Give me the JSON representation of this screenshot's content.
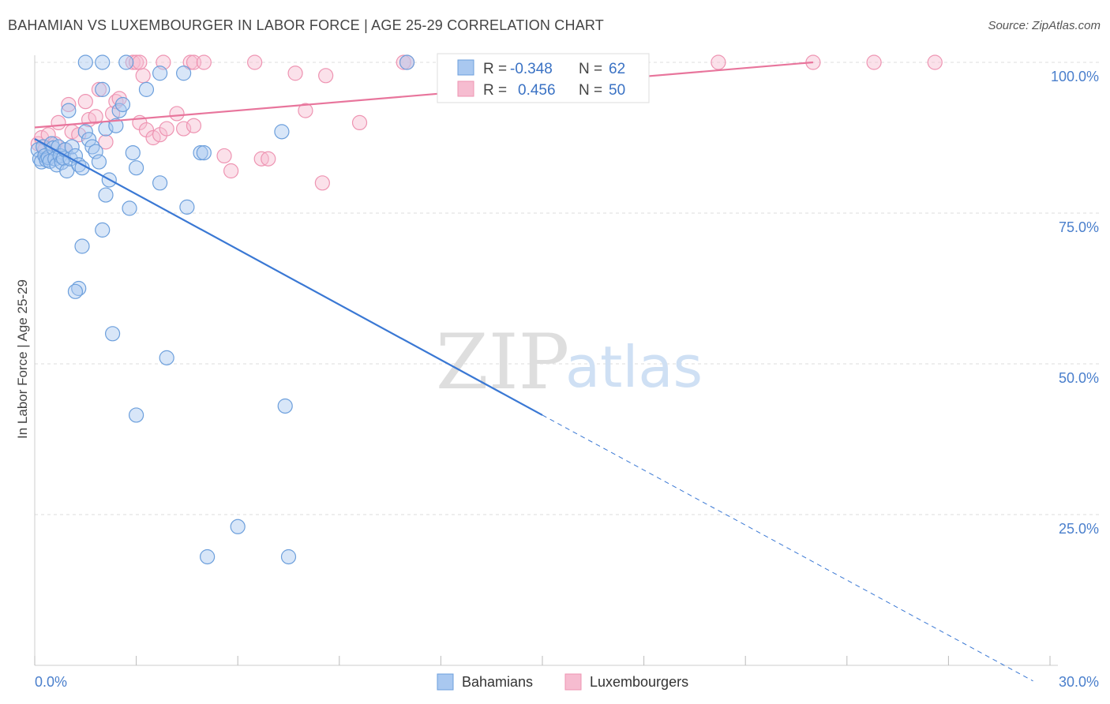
{
  "title": "BAHAMIAN VS LUXEMBOURGER IN LABOR FORCE | AGE 25-29 CORRELATION CHART",
  "source": "Source: ZipAtlas.com",
  "watermark": {
    "zip": "ZIP",
    "atlas": "atlas"
  },
  "colors": {
    "blue_fill": "#a9c8f0",
    "blue_stroke": "#6c9fdc",
    "blue_line": "#3a78d4",
    "pink_fill": "#f6bcd0",
    "pink_stroke": "#ee94b2",
    "pink_line": "#e8759c",
    "grid": "#dddddd",
    "tick_text": "#4a7fcc"
  },
  "legend": {
    "rows": [
      {
        "r_label": "R =",
        "r_value": "-0.348",
        "n_label": "N =",
        "n_value": "62"
      },
      {
        "r_label": "R =",
        "r_value": "0.456",
        "n_label": "N =",
        "n_value": "50"
      }
    ]
  },
  "bottom_legend": [
    "Bahamians",
    "Luxembourgers"
  ],
  "chart_data": {
    "type": "scatter",
    "title": "BAHAMIAN VS LUXEMBOURGER IN LABOR FORCE | AGE 25-29 CORRELATION CHART",
    "xlabel": "",
    "ylabel": "In Labor Force | Age 25-29",
    "xlim": [
      0,
      30
    ],
    "ylim": [
      0,
      100
    ],
    "x_tick_labels": [
      "0.0%",
      "30.0%"
    ],
    "y_ticks": [
      25,
      50,
      75,
      100
    ],
    "y_tick_labels": [
      "25.0%",
      "50.0%",
      "75.0%",
      "100.0%"
    ],
    "grid": true,
    "series": [
      {
        "name": "Bahamians",
        "r": -0.348,
        "n": 62,
        "trend": {
          "x0": 0,
          "y0": 87.3,
          "x1": 15.0,
          "y1": 41.5,
          "dash_x1": 29.5,
          "dash_y1": -2.6
        },
        "points": [
          [
            0.1,
            85.5
          ],
          [
            0.15,
            84.0
          ],
          [
            0.2,
            83.5
          ],
          [
            0.25,
            86.0
          ],
          [
            0.3,
            84.5
          ],
          [
            0.35,
            83.8
          ],
          [
            0.4,
            84.2
          ],
          [
            0.45,
            83.6
          ],
          [
            0.5,
            86.5
          ],
          [
            0.55,
            85.8
          ],
          [
            0.6,
            84.0
          ],
          [
            0.65,
            83.0
          ],
          [
            0.7,
            86.0
          ],
          [
            0.75,
            84.5
          ],
          [
            0.8,
            83.4
          ],
          [
            0.85,
            84.1
          ],
          [
            0.9,
            85.5
          ],
          [
            0.95,
            82.0
          ],
          [
            1.0,
            92.0
          ],
          [
            1.05,
            84.0
          ],
          [
            1.1,
            86.0
          ],
          [
            1.2,
            84.5
          ],
          [
            1.3,
            83.0
          ],
          [
            1.4,
            82.5
          ],
          [
            1.5,
            88.5
          ],
          [
            1.6,
            87.2
          ],
          [
            1.7,
            86.0
          ],
          [
            1.8,
            85.2
          ],
          [
            1.9,
            83.5
          ],
          [
            2.0,
            95.5
          ],
          [
            2.1,
            89.0
          ],
          [
            2.2,
            80.5
          ],
          [
            2.4,
            89.5
          ],
          [
            2.5,
            92.0
          ],
          [
            2.6,
            93.0
          ],
          [
            2.9,
            85.0
          ],
          [
            3.0,
            82.5
          ],
          [
            3.3,
            95.5
          ],
          [
            3.7,
            80.0
          ],
          [
            4.5,
            76.0
          ],
          [
            4.9,
            85.0
          ],
          [
            5.0,
            85.0
          ],
          [
            7.3,
            88.5
          ],
          [
            1.5,
            100.0
          ],
          [
            2.0,
            100.0
          ],
          [
            2.7,
            100.0
          ],
          [
            3.7,
            98.2
          ],
          [
            4.4,
            98.2
          ],
          [
            11.0,
            100.0
          ],
          [
            2.1,
            78.0
          ],
          [
            2.8,
            75.8
          ],
          [
            2.0,
            72.2
          ],
          [
            1.4,
            69.5
          ],
          [
            1.3,
            62.5
          ],
          [
            1.2,
            62.0
          ],
          [
            2.3,
            55.0
          ],
          [
            3.9,
            51.0
          ],
          [
            3.0,
            41.5
          ],
          [
            7.4,
            43.0
          ],
          [
            6.0,
            23.0
          ],
          [
            5.1,
            18.0
          ],
          [
            7.5,
            18.0
          ]
        ]
      },
      {
        "name": "Luxembourgers",
        "r": 0.456,
        "n": 50,
        "trend": {
          "x0": 0,
          "y0": 89.2,
          "x1": 23.0,
          "y1": 100.0
        },
        "points": [
          [
            0.1,
            86.5
          ],
          [
            0.2,
            87.5
          ],
          [
            0.3,
            85.5
          ],
          [
            0.4,
            88.0
          ],
          [
            0.6,
            86.5
          ],
          [
            0.7,
            90.0
          ],
          [
            0.9,
            85.5
          ],
          [
            1.0,
            93.0
          ],
          [
            1.1,
            88.5
          ],
          [
            1.3,
            88.0
          ],
          [
            1.5,
            93.5
          ],
          [
            1.6,
            90.5
          ],
          [
            1.8,
            91.0
          ],
          [
            1.9,
            95.5
          ],
          [
            2.1,
            86.8
          ],
          [
            2.3,
            91.5
          ],
          [
            2.4,
            93.5
          ],
          [
            2.5,
            94.0
          ],
          [
            3.1,
            90.0
          ],
          [
            3.3,
            88.8
          ],
          [
            3.5,
            87.5
          ],
          [
            3.7,
            88.0
          ],
          [
            3.9,
            89.0
          ],
          [
            4.2,
            91.5
          ],
          [
            4.4,
            89.0
          ],
          [
            4.7,
            89.5
          ],
          [
            5.6,
            84.5
          ],
          [
            5.8,
            82.0
          ],
          [
            6.7,
            84.0
          ],
          [
            6.9,
            84.0
          ],
          [
            7.7,
            98.2
          ],
          [
            8.0,
            92.0
          ],
          [
            8.5,
            80.0
          ],
          [
            8.6,
            97.8
          ],
          [
            9.6,
            90.0
          ],
          [
            10.9,
            100.0
          ],
          [
            11.0,
            100.0
          ],
          [
            3.2,
            97.8
          ],
          [
            2.9,
            100.0
          ],
          [
            3.0,
            100.0
          ],
          [
            3.1,
            100.0
          ],
          [
            3.8,
            100.0
          ],
          [
            4.6,
            100.0
          ],
          [
            4.7,
            100.0
          ],
          [
            5.0,
            100.0
          ],
          [
            6.5,
            100.0
          ],
          [
            20.2,
            100.0
          ],
          [
            23.0,
            100.0
          ],
          [
            24.8,
            100.0
          ],
          [
            26.6,
            100.0
          ]
        ]
      }
    ]
  }
}
